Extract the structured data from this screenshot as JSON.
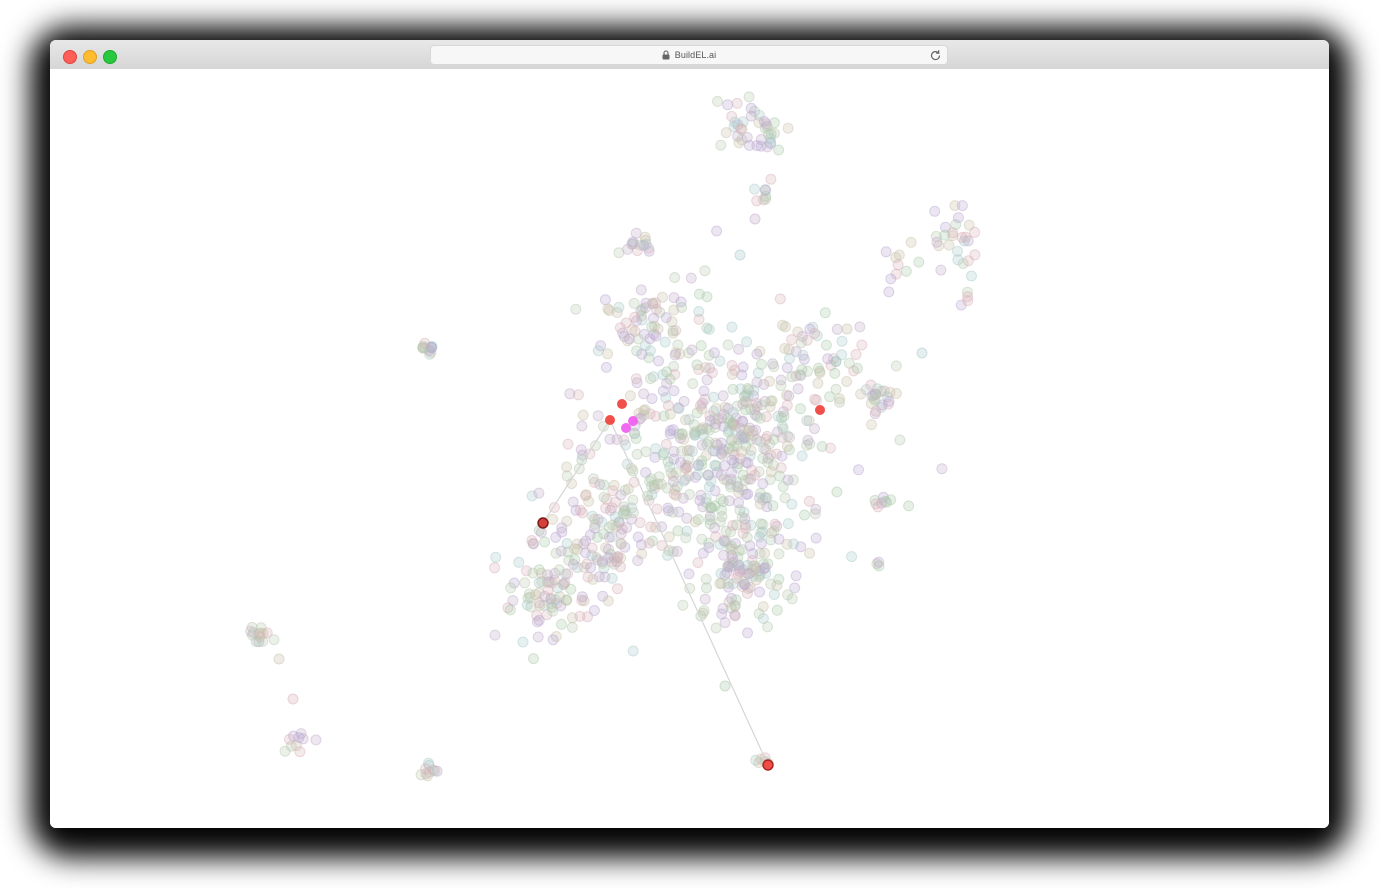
{
  "browser": {
    "url": "BuildEL.ai",
    "lock_icon": "lock-icon",
    "reload_icon": "reload-icon"
  },
  "colors": {
    "highlight_red": "#f0403a",
    "highlight_dark_red": "#d0312d",
    "highlight_magenta": "#f05cf0",
    "edge": "#d6d6d6",
    "palette": [
      "#b8a6d0",
      "#a8c8a8",
      "#c8c0a8",
      "#d8b0b8",
      "#a8c8c8",
      "#c0a8c8",
      "#b8c8b0"
    ]
  }
}
